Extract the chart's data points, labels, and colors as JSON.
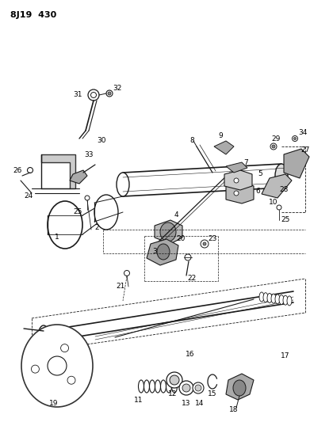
{
  "title": "8J19  430",
  "bg_color": "#ffffff",
  "line_color": "#1a1a1a",
  "title_fontsize": 8,
  "label_fontsize": 6.5,
  "fig_w": 3.91,
  "fig_h": 5.33,
  "dpi": 100
}
